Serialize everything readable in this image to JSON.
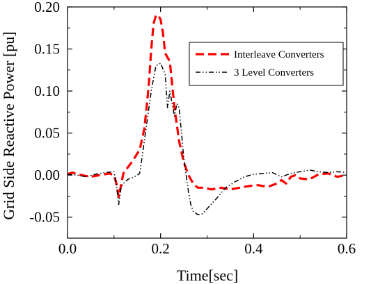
{
  "chart_data": {
    "type": "line",
    "xlabel": "Time[sec]",
    "ylabel": "Grid Side Reactive Power [pu]",
    "xlim": [
      0.0,
      0.6
    ],
    "ylim": [
      -0.075,
      0.2
    ],
    "xticks": [
      0.0,
      0.2,
      0.4,
      0.6
    ],
    "xtick_labels": [
      "0.0",
      "0.2",
      "0.4",
      "0.6"
    ],
    "yticks": [
      -0.05,
      0.0,
      0.05,
      0.1,
      0.15,
      0.2
    ],
    "ytick_labels": [
      "-0.05",
      "0.00",
      "0.05",
      "0.10",
      "0.15",
      "0.20"
    ],
    "grid": false,
    "legend_position": "upper-right",
    "series": [
      {
        "name": "Interleave Converters",
        "color": "#ff0000",
        "style": "dashed",
        "x": [
          0.0,
          0.01,
          0.03,
          0.05,
          0.07,
          0.09,
          0.1,
          0.105,
          0.11,
          0.115,
          0.12,
          0.14,
          0.155,
          0.165,
          0.17,
          0.175,
          0.18,
          0.185,
          0.19,
          0.195,
          0.2,
          0.205,
          0.21,
          0.215,
          0.22,
          0.23,
          0.24,
          0.25,
          0.26,
          0.27,
          0.28,
          0.29,
          0.31,
          0.33,
          0.35,
          0.37,
          0.39,
          0.41,
          0.43,
          0.45,
          0.46,
          0.47,
          0.48,
          0.49,
          0.5,
          0.52,
          0.54,
          0.56,
          0.58,
          0.6
        ],
        "y": [
          0.001,
          0.003,
          0.0,
          -0.002,
          0.0,
          0.002,
          0.0,
          -0.01,
          -0.026,
          -0.012,
          0.002,
          0.017,
          0.03,
          0.055,
          0.08,
          0.11,
          0.15,
          0.18,
          0.19,
          0.19,
          0.185,
          0.17,
          0.145,
          0.14,
          0.135,
          0.08,
          0.04,
          0.015,
          0.0,
          -0.01,
          -0.015,
          -0.015,
          -0.017,
          -0.015,
          -0.017,
          -0.015,
          -0.013,
          -0.012,
          -0.014,
          -0.01,
          -0.006,
          -0.01,
          -0.002,
          0.0,
          -0.004,
          -0.005,
          0.001,
          0.002,
          -0.002,
          0.0
        ]
      },
      {
        "name": "3 Level Converters",
        "color": "#000000",
        "style": "dashdotdot",
        "x": [
          0.0,
          0.02,
          0.04,
          0.06,
          0.08,
          0.1,
          0.105,
          0.11,
          0.115,
          0.12,
          0.13,
          0.14,
          0.15,
          0.155,
          0.16,
          0.17,
          0.18,
          0.19,
          0.2,
          0.21,
          0.215,
          0.22,
          0.23,
          0.235,
          0.24,
          0.245,
          0.25,
          0.255,
          0.26,
          0.265,
          0.27,
          0.28,
          0.29,
          0.3,
          0.32,
          0.34,
          0.36,
          0.38,
          0.4,
          0.42,
          0.44,
          0.46,
          0.48,
          0.5,
          0.52,
          0.54,
          0.56,
          0.58,
          0.6
        ],
        "y": [
          0.001,
          0.0,
          -0.002,
          0.001,
          0.003,
          0.004,
          -0.01,
          -0.035,
          -0.015,
          -0.01,
          -0.005,
          -0.003,
          0.0,
          0.002,
          0.02,
          0.06,
          0.1,
          0.13,
          0.133,
          0.12,
          0.08,
          0.1,
          0.07,
          0.085,
          0.08,
          0.05,
          0.02,
          0.0,
          -0.02,
          -0.035,
          -0.043,
          -0.047,
          -0.046,
          -0.04,
          -0.028,
          -0.015,
          -0.008,
          -0.002,
          0.001,
          0.002,
          0.003,
          -0.002,
          0.002,
          0.004,
          0.006,
          0.004,
          0.003,
          0.004,
          0.003
        ]
      }
    ]
  }
}
